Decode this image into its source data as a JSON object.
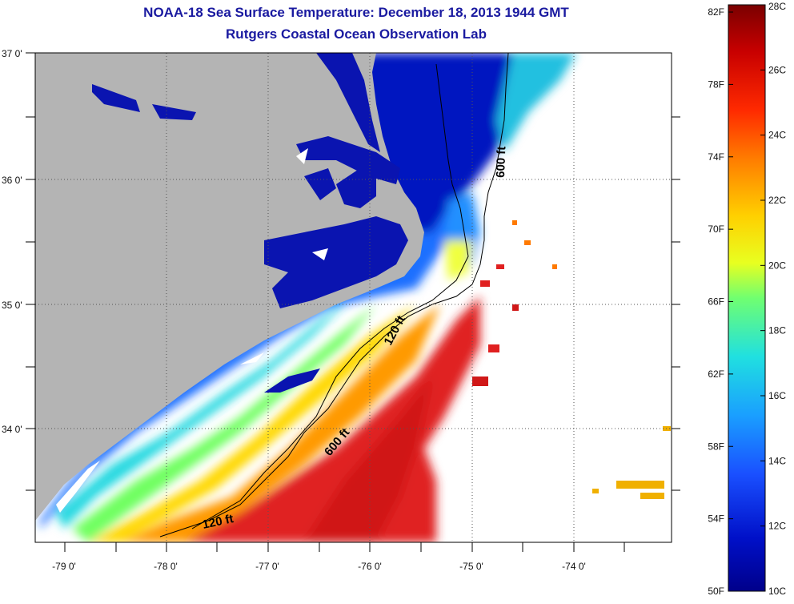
{
  "header": {
    "title": "NOAA-18 Sea Surface Temperature:  December 18, 2013 1944 GMT",
    "subtitle": "Rutgers Coastal Ocean Observation Lab"
  },
  "axes": {
    "lon_labels": [
      "-79 0'",
      "-78 0'",
      "-77 0'",
      "-76 0'",
      "-75 0'",
      "-74 0'"
    ],
    "lat_labels": [
      "37 0'",
      "36 0'",
      "35 0'",
      "34 0'"
    ]
  },
  "contours": {
    "isobath_600_north": "600 ft",
    "isobath_120": "120 ft",
    "isobath_600_south": "600 ft",
    "isobath_120_south": "120 ft"
  },
  "colorbar": {
    "fahrenheit": [
      "82F",
      "78F",
      "74F",
      "70F",
      "66F",
      "62F",
      "58F",
      "54F",
      "50F"
    ],
    "celsius": [
      "28C",
      "26C",
      "24C",
      "22C",
      "20C",
      "18C",
      "16C",
      "14C",
      "12C",
      "10C"
    ],
    "colors": [
      "#7a0000",
      "#c80000",
      "#ff2a00",
      "#ff7a00",
      "#ffd000",
      "#e8ff20",
      "#70ff70",
      "#20e0e0",
      "#1a9fff",
      "#1a50ff",
      "#0010c8",
      "#00008a"
    ]
  },
  "colors": {
    "land": "#b4b4b4",
    "title": "#1a1aa0",
    "no_data": "#ffffff"
  }
}
